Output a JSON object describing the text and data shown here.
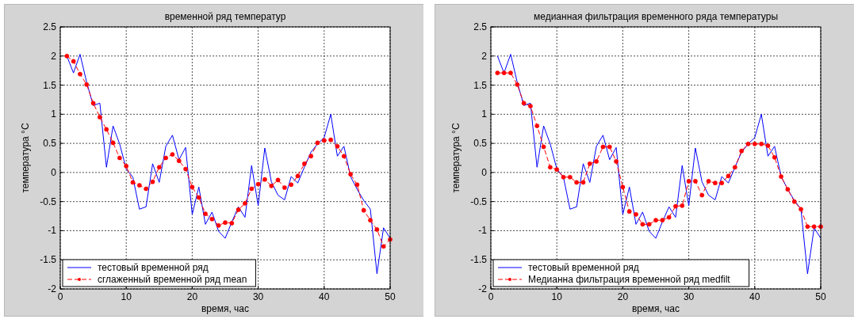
{
  "chart_data": [
    {
      "type": "line",
      "title": "временной ряд температур",
      "xlabel": "время, час",
      "ylabel": "температура °C",
      "xlim": [
        0,
        50
      ],
      "xticks": [
        0,
        10,
        20,
        30,
        40,
        50
      ],
      "ylim": [
        -2,
        2.5
      ],
      "yticks": [
        -2,
        -1.5,
        -1,
        -0.5,
        0,
        0.5,
        1,
        1.5,
        2,
        2.5
      ],
      "grid": true,
      "legend": "bottom left",
      "x": [
        1,
        2,
        3,
        4,
        5,
        6,
        7,
        8,
        9,
        10,
        11,
        12,
        13,
        14,
        15,
        16,
        17,
        18,
        19,
        20,
        21,
        22,
        23,
        24,
        25,
        26,
        27,
        28,
        29,
        30,
        31,
        32,
        33,
        34,
        35,
        36,
        37,
        38,
        39,
        40,
        41,
        42,
        43,
        44,
        45,
        46,
        47,
        48,
        49,
        50
      ],
      "series": [
        {
          "name": "тестовый временной ряд",
          "color": "#0000ff",
          "marker": "none",
          "line_style": "solid",
          "values": [
            2.0,
            1.71,
            2.03,
            1.55,
            1.15,
            1.19,
            0.09,
            0.8,
            0.49,
            0.06,
            -0.08,
            -0.63,
            -0.59,
            0.15,
            -0.17,
            0.45,
            0.64,
            0.22,
            0.43,
            -0.72,
            -0.25,
            -0.89,
            -0.68,
            -1.01,
            -1.13,
            -0.85,
            -0.59,
            -0.77,
            0.12,
            -0.57,
            0.42,
            -0.16,
            -0.39,
            -0.47,
            -0.07,
            -0.18,
            0.09,
            0.35,
            0.49,
            0.6,
            1.0,
            0.28,
            0.45,
            -0.07,
            -0.29,
            -0.48,
            -0.63,
            -1.74,
            -0.95,
            -1.13
          ]
        },
        {
          "name": "сглаженный временной ряд mean",
          "color": "#ff0000",
          "marker": "circle",
          "line_style": "dashed",
          "values": [
            2.0,
            1.91,
            1.69,
            1.51,
            1.19,
            0.95,
            0.74,
            0.51,
            0.25,
            0.11,
            -0.17,
            -0.22,
            -0.28,
            -0.16,
            0.09,
            0.25,
            0.31,
            0.2,
            0.06,
            -0.25,
            -0.43,
            -0.71,
            -0.8,
            -0.91,
            -0.86,
            -0.87,
            -0.64,
            -0.53,
            -0.28,
            -0.2,
            -0.12,
            -0.23,
            -0.13,
            -0.26,
            -0.21,
            -0.06,
            0.15,
            0.28,
            0.51,
            0.55,
            0.56,
            0.45,
            0.28,
            -0.03,
            -0.21,
            -0.65,
            -0.82,
            -0.98,
            -1.27,
            -1.15
          ]
        }
      ]
    },
    {
      "type": "line",
      "title": "медианная фильтрация временного ряда температуры",
      "xlabel": "время, час",
      "ylabel": "температура °C",
      "xlim": [
        0,
        50
      ],
      "xticks": [
        0,
        10,
        20,
        30,
        40,
        50
      ],
      "ylim": [
        -2,
        2.5
      ],
      "yticks": [
        -2,
        -1.5,
        -1,
        -0.5,
        0,
        0.5,
        1,
        1.5,
        2,
        2.5
      ],
      "grid": true,
      "legend": "bottom left",
      "x": [
        1,
        2,
        3,
        4,
        5,
        6,
        7,
        8,
        9,
        10,
        11,
        12,
        13,
        14,
        15,
        16,
        17,
        18,
        19,
        20,
        21,
        22,
        23,
        24,
        25,
        26,
        27,
        28,
        29,
        30,
        31,
        32,
        33,
        34,
        35,
        36,
        37,
        38,
        39,
        40,
        41,
        42,
        43,
        44,
        45,
        46,
        47,
        48,
        49,
        50
      ],
      "series": [
        {
          "name": "тестовый временной ряд",
          "color": "#0000ff",
          "marker": "none",
          "line_style": "solid",
          "values": [
            2.0,
            1.71,
            2.03,
            1.55,
            1.15,
            1.19,
            0.09,
            0.8,
            0.49,
            0.06,
            -0.08,
            -0.63,
            -0.59,
            0.15,
            -0.17,
            0.45,
            0.64,
            0.22,
            0.43,
            -0.72,
            -0.25,
            -0.89,
            -0.68,
            -1.01,
            -1.13,
            -0.85,
            -0.59,
            -0.77,
            0.12,
            -0.57,
            0.42,
            -0.16,
            -0.39,
            -0.47,
            -0.07,
            -0.18,
            0.09,
            0.35,
            0.49,
            0.6,
            1.0,
            0.28,
            0.45,
            -0.07,
            -0.29,
            -0.48,
            -0.63,
            -1.74,
            -0.95,
            -1.13
          ]
        },
        {
          "name": "Медианна фильтрация временной ряд medfilt",
          "color": "#ff0000",
          "marker": "circle",
          "line_style": "dashed",
          "values": [
            1.71,
            1.71,
            1.71,
            1.51,
            1.19,
            1.14,
            0.8,
            0.44,
            0.09,
            0.05,
            -0.08,
            -0.08,
            -0.17,
            -0.17,
            0.15,
            0.19,
            0.44,
            0.44,
            0.19,
            -0.25,
            -0.67,
            -0.72,
            -0.89,
            -0.89,
            -0.82,
            -0.82,
            -0.77,
            -0.58,
            -0.57,
            -0.15,
            -0.15,
            -0.39,
            -0.15,
            -0.18,
            -0.18,
            -0.06,
            0.09,
            0.37,
            0.49,
            0.49,
            0.49,
            0.46,
            0.26,
            -0.07,
            -0.29,
            -0.5,
            -0.63,
            -0.93,
            -0.93,
            -0.93
          ]
        }
      ]
    }
  ]
}
